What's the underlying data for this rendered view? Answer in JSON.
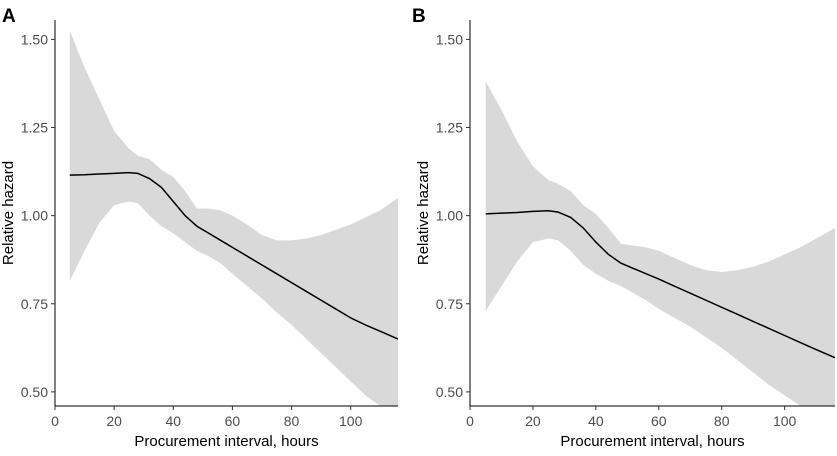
{
  "chart_data": [
    {
      "type": "line",
      "panel_label": "A",
      "xlabel": "Procurement interval, hours",
      "ylabel": "Relative hazard",
      "xlim": [
        0,
        116
      ],
      "ylim": [
        0.46,
        1.555
      ],
      "x_ticks": [
        0,
        20,
        40,
        60,
        80,
        100
      ],
      "y_ticks": [
        "0.50",
        "0.75",
        "1.00",
        "1.25",
        "1.50"
      ],
      "grid": false,
      "colors": {
        "line": "#000000",
        "band": "#d9d9d9"
      },
      "series": [
        {
          "x": [
            5,
            10,
            15,
            20,
            25,
            28,
            32,
            36,
            40,
            44,
            48,
            52,
            56,
            60,
            65,
            70,
            75,
            80,
            85,
            90,
            95,
            100,
            105,
            110,
            116
          ],
          "y": [
            1.115,
            1.116,
            1.118,
            1.12,
            1.122,
            1.12,
            1.105,
            1.08,
            1.04,
            1.0,
            0.97,
            0.95,
            0.93,
            0.91,
            0.885,
            0.86,
            0.835,
            0.81,
            0.785,
            0.76,
            0.735,
            0.71,
            0.69,
            0.672,
            0.65
          ],
          "lower": [
            0.815,
            0.9,
            0.98,
            1.03,
            1.04,
            1.035,
            1.0,
            0.97,
            0.95,
            0.925,
            0.9,
            0.885,
            0.865,
            0.835,
            0.8,
            0.765,
            0.725,
            0.69,
            0.65,
            0.61,
            0.57,
            0.53,
            0.49,
            0.46,
            0.46
          ],
          "upper": [
            1.525,
            1.42,
            1.33,
            1.24,
            1.19,
            1.17,
            1.16,
            1.13,
            1.11,
            1.07,
            1.02,
            1.02,
            1.015,
            1.0,
            0.975,
            0.945,
            0.93,
            0.93,
            0.935,
            0.945,
            0.96,
            0.975,
            0.995,
            1.015,
            1.05
          ]
        }
      ]
    },
    {
      "type": "line",
      "panel_label": "B",
      "xlabel": "Procurement interval, hours",
      "ylabel": "Relative hazard",
      "xlim": [
        0,
        116
      ],
      "ylim": [
        0.46,
        1.555
      ],
      "x_ticks": [
        0,
        20,
        40,
        60,
        80,
        100
      ],
      "y_ticks": [
        "0.50",
        "0.75",
        "1.00",
        "1.25",
        "1.50"
      ],
      "grid": false,
      "colors": {
        "line": "#000000",
        "band": "#d9d9d9"
      },
      "series": [
        {
          "x": [
            5,
            10,
            15,
            20,
            25,
            28,
            32,
            36,
            40,
            44,
            48,
            52,
            56,
            60,
            65,
            70,
            75,
            80,
            85,
            90,
            95,
            100,
            105,
            110,
            116
          ],
          "y": [
            1.005,
            1.007,
            1.009,
            1.012,
            1.014,
            1.01,
            0.995,
            0.965,
            0.925,
            0.89,
            0.865,
            0.85,
            0.835,
            0.82,
            0.8,
            0.78,
            0.76,
            0.74,
            0.72,
            0.7,
            0.68,
            0.66,
            0.64,
            0.62,
            0.597
          ],
          "lower": [
            0.73,
            0.8,
            0.87,
            0.925,
            0.935,
            0.93,
            0.9,
            0.86,
            0.835,
            0.815,
            0.8,
            0.78,
            0.76,
            0.735,
            0.71,
            0.685,
            0.655,
            0.625,
            0.59,
            0.555,
            0.52,
            0.49,
            0.46,
            0.46,
            0.46
          ],
          "upper": [
            1.38,
            1.3,
            1.21,
            1.14,
            1.1,
            1.09,
            1.07,
            1.03,
            1.005,
            0.965,
            0.92,
            0.915,
            0.91,
            0.9,
            0.88,
            0.86,
            0.845,
            0.84,
            0.845,
            0.855,
            0.87,
            0.89,
            0.91,
            0.935,
            0.965
          ]
        }
      ]
    }
  ]
}
